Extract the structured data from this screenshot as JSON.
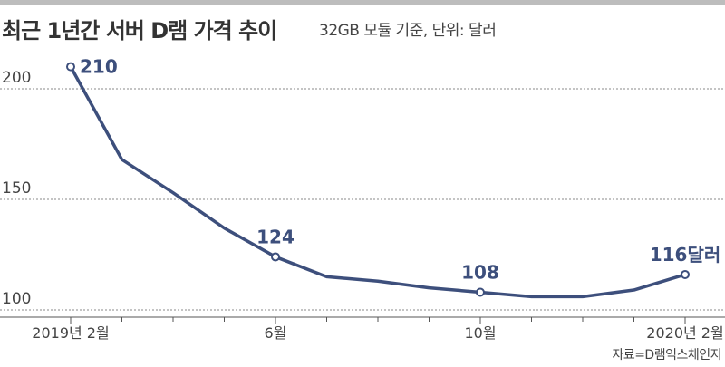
{
  "title": "최근 1년간 서버 D램 가격 추이",
  "subtitle": "32GB 모듈 기준, 단위: 달러",
  "source": "자료=D램익스체인지",
  "colors": {
    "line": "#3d4f7c",
    "grid": "#888888",
    "axis": "#555555",
    "text": "#444444"
  },
  "chart_data": {
    "type": "line",
    "title": "최근 1년간 서버 D램 가격 추이",
    "subtitle": "32GB 모듈 기준, 단위: 달러",
    "x": [
      "2019-02",
      "2019-03",
      "2019-04",
      "2019-05",
      "2019-06",
      "2019-07",
      "2019-08",
      "2019-09",
      "2019-10",
      "2019-11",
      "2019-12",
      "2020-01",
      "2020-02"
    ],
    "values": [
      210,
      168,
      153,
      137,
      124,
      115,
      113,
      110,
      108,
      106,
      106,
      109,
      116
    ],
    "ylim": [
      100,
      215
    ],
    "yticks": [
      100,
      150,
      200
    ],
    "xtick_labels": [
      {
        "index": 0,
        "label": "2019년 2월"
      },
      {
        "index": 4,
        "label": "6월"
      },
      {
        "index": 8,
        "label": "10월"
      },
      {
        "index": 12,
        "label": "2020년 2월"
      }
    ],
    "annotations": [
      {
        "index": 0,
        "label": "210"
      },
      {
        "index": 4,
        "label": "124"
      },
      {
        "index": 8,
        "label": "108"
      },
      {
        "index": 12,
        "label": "116달러"
      }
    ],
    "grid": true,
    "grid_style": "dotted horizontal"
  }
}
